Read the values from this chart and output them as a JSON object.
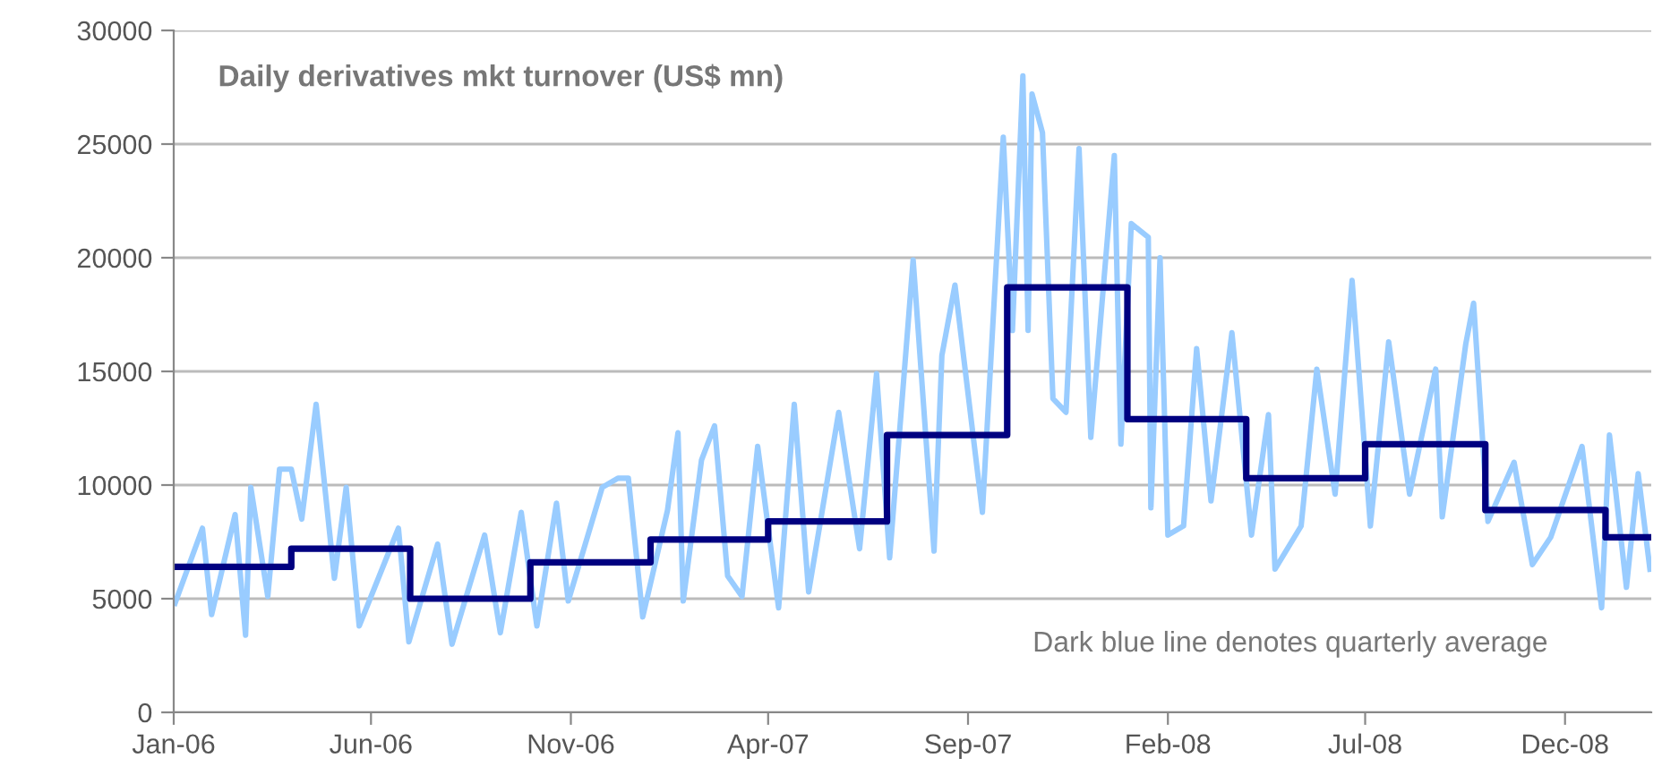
{
  "chart_data": {
    "type": "line",
    "title": "Daily derivatives mkt turnover (US$ mn)",
    "annotations": [
      "Dark blue line denotes quarterly average"
    ],
    "xlim": [
      "2006-01-01",
      "2009-02-05"
    ],
    "xticks": [
      {
        "value": "2006-01-01",
        "label": "Jan-06"
      },
      {
        "value": "2006-06-01",
        "label": "Jun-06"
      },
      {
        "value": "2006-11-01",
        "label": "Nov-06"
      },
      {
        "value": "2007-04-01",
        "label": "Apr-07"
      },
      {
        "value": "2007-09-01",
        "label": "Sep-07"
      },
      {
        "value": "2008-02-01",
        "label": "Feb-08"
      },
      {
        "value": "2008-07-01",
        "label": "Jul-08"
      },
      {
        "value": "2008-12-01",
        "label": "Dec-08"
      }
    ],
    "ylim": [
      0,
      30000
    ],
    "yticks": [
      0,
      5000,
      10000,
      15000,
      20000,
      25000,
      30000
    ],
    "grid": "y",
    "series": [
      {
        "color": "#99ccff",
        "x": [
          "2006-01-02",
          "2006-01-23",
          "2006-01-30",
          "2006-02-17",
          "2006-02-25",
          "2006-03-01",
          "2006-03-14",
          "2006-03-23",
          "2006-04-01",
          "2006-04-09",
          "2006-04-20",
          "2006-05-04",
          "2006-05-13",
          "2006-05-23",
          "2006-06-22",
          "2006-06-30",
          "2006-07-22",
          "2006-08-02",
          "2006-08-27",
          "2006-09-08",
          "2006-09-24",
          "2006-10-06",
          "2006-10-21",
          "2006-10-30",
          "2006-11-25",
          "2006-12-07",
          "2006-12-15",
          "2006-12-26",
          "2007-01-14",
          "2007-01-22",
          "2007-01-26",
          "2007-02-09",
          "2007-02-19",
          "2007-03-01",
          "2007-03-12",
          "2007-03-24",
          "2007-04-09",
          "2007-04-21",
          "2007-05-02",
          "2007-05-25",
          "2007-06-10",
          "2007-06-23",
          "2007-07-03",
          "2007-07-21",
          "2007-08-06",
          "2007-08-12",
          "2007-08-22",
          "2007-09-12",
          "2007-09-28",
          "2007-10-05",
          "2007-10-13",
          "2007-10-17",
          "2007-10-20",
          "2007-10-28",
          "2007-11-05",
          "2007-11-15",
          "2007-11-25",
          "2007-12-04",
          "2007-12-22",
          "2007-12-27",
          "2008-01-04",
          "2008-01-17",
          "2008-01-19",
          "2008-01-26",
          "2008-02-01",
          "2008-02-13",
          "2008-02-23",
          "2008-03-05",
          "2008-03-21",
          "2008-04-05",
          "2008-04-18",
          "2008-04-23",
          "2008-05-13",
          "2008-05-25",
          "2008-06-08",
          "2008-06-21",
          "2008-07-05",
          "2008-07-19",
          "2008-08-04",
          "2008-08-24",
          "2008-08-29",
          "2008-09-16",
          "2008-09-22",
          "2008-10-03",
          "2008-10-23",
          "2008-11-06",
          "2008-11-20",
          "2008-12-14",
          "2008-12-29",
          "2009-01-04",
          "2009-01-17",
          "2009-01-26",
          "2009-02-04"
        ],
        "values": [
          4800,
          8100,
          4300,
          8700,
          3400,
          9900,
          5100,
          10700,
          10700,
          8500,
          13550,
          5900,
          9900,
          3800,
          8100,
          3100,
          7400,
          3000,
          7800,
          3500,
          8800,
          3800,
          9200,
          4900,
          9900,
          10300,
          10300,
          4200,
          8900,
          12300,
          4900,
          11100,
          12600,
          6000,
          5100,
          11700,
          4600,
          13550,
          5300,
          13200,
          7200,
          14900,
          6800,
          19900,
          7100,
          15700,
          18800,
          8800,
          25300,
          16800,
          28000,
          16800,
          27200,
          25500,
          13800,
          13200,
          24800,
          12100,
          24500,
          11800,
          21500,
          20900,
          9000,
          20000,
          7800,
          8200,
          16000,
          9300,
          16700,
          7800,
          13100,
          6300,
          8200,
          15100,
          9600,
          19000,
          8200,
          16300,
          9600,
          15100,
          8600,
          16200,
          18000,
          8400,
          11000,
          6500,
          7700,
          11700,
          4600,
          12200,
          5500,
          10500,
          6300
        ]
      },
      {
        "type": "step",
        "color": "#000080",
        "x": [
          "2006-01-01",
          "2006-04-01",
          "2006-07-01",
          "2006-10-01",
          "2007-01-01",
          "2007-04-01",
          "2007-07-01",
          "2007-10-01",
          "2008-01-01",
          "2008-04-01",
          "2008-07-01",
          "2008-10-01",
          "2009-01-01",
          "2009-02-05"
        ],
        "values": [
          6400,
          7200,
          5000,
          6600,
          7600,
          8400,
          12200,
          18700,
          12900,
          10300,
          11800,
          8900,
          7700,
          7700
        ]
      }
    ]
  }
}
